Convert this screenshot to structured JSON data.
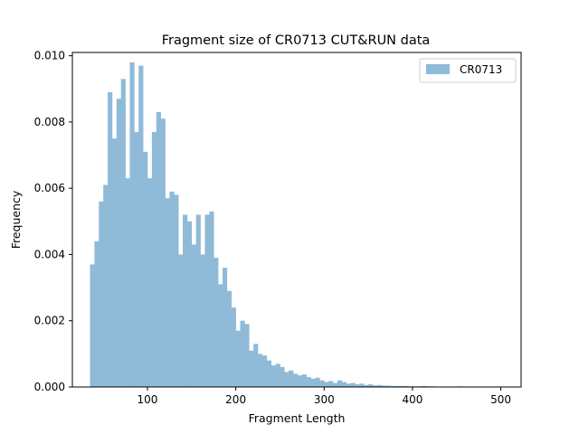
{
  "chart_data": {
    "type": "bar",
    "title": "Fragment size of CR0713 CUT&RUN data",
    "xlabel": "Fragment Length",
    "ylabel": "Frequency",
    "xlim": [
      15,
      523
    ],
    "ylim": [
      0,
      0.0101
    ],
    "grid": false,
    "legend_position": "top-right",
    "bin_width": 5,
    "x_ticks": [
      100,
      200,
      300,
      400,
      500
    ],
    "x_tick_labels": [
      "100",
      "200",
      "300",
      "400",
      "500"
    ],
    "y_ticks": [
      0,
      0.002,
      0.004,
      0.006,
      0.008,
      0.01
    ],
    "y_tick_labels": [
      "0.000",
      "0.002",
      "0.004",
      "0.006",
      "0.008",
      "0.010"
    ],
    "series": [
      {
        "name": "CR0713",
        "color": "#8fbad8",
        "bin_starts": [
          35,
          40,
          45,
          50,
          55,
          60,
          65,
          70,
          75,
          80,
          85,
          90,
          95,
          100,
          105,
          110,
          115,
          120,
          125,
          130,
          135,
          140,
          145,
          150,
          155,
          160,
          165,
          170,
          175,
          180,
          185,
          190,
          195,
          200,
          205,
          210,
          215,
          220,
          225,
          230,
          235,
          240,
          245,
          250,
          255,
          260,
          265,
          270,
          275,
          280,
          285,
          290,
          295,
          300,
          305,
          310,
          315,
          320,
          325,
          330,
          335,
          340,
          345,
          350,
          355,
          360,
          365,
          370,
          375,
          380,
          385,
          390,
          395,
          400,
          405,
          410,
          415,
          420,
          425,
          430,
          435,
          440,
          445,
          450,
          455,
          460,
          465,
          470,
          475,
          480,
          485,
          490,
          495
        ],
        "values": [
          0.0037,
          0.0044,
          0.0056,
          0.0061,
          0.0089,
          0.0075,
          0.0087,
          0.0093,
          0.0063,
          0.0098,
          0.0077,
          0.0097,
          0.0071,
          0.0063,
          0.0077,
          0.0083,
          0.0081,
          0.0057,
          0.0059,
          0.0058,
          0.004,
          0.0052,
          0.005,
          0.0043,
          0.0052,
          0.004,
          0.0052,
          0.0053,
          0.0039,
          0.0031,
          0.0036,
          0.0029,
          0.0024,
          0.0017,
          0.002,
          0.0019,
          0.0011,
          0.0013,
          0.001,
          0.00095,
          0.0008,
          0.00065,
          0.0007,
          0.0006,
          0.00045,
          0.0005,
          0.0004,
          0.00035,
          0.00038,
          0.0003,
          0.00025,
          0.00028,
          0.0002,
          0.00015,
          0.00018,
          0.00012,
          0.0002,
          0.00015,
          0.0001,
          0.00012,
          8e-05,
          0.0001,
          6e-05,
          8e-05,
          5e-05,
          6e-05,
          4e-05,
          4e-05,
          3e-05,
          3e-05,
          3e-05,
          3e-05,
          2e-05,
          2e-05,
          2e-05,
          3e-05,
          2e-05,
          2e-05,
          1e-05,
          1e-05,
          1e-05,
          1e-05,
          1e-05,
          2e-05,
          1e-05,
          1e-05,
          1e-05,
          1e-05,
          1e-05,
          1e-05,
          1e-05,
          1e-05,
          1e-05
        ]
      }
    ]
  }
}
